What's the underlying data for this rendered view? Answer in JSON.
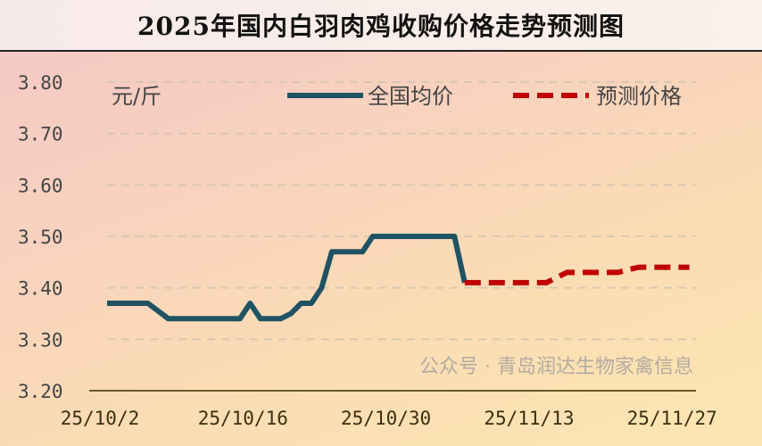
{
  "title": "2025年国内白羽肉鸡收购价格走势预测图",
  "watermark": "公众号 · 青岛润达生物家禽信息",
  "chart_data": {
    "type": "line",
    "title": "2025年国内白羽肉鸡收购价格走势预测图",
    "ylabel": "元/斤",
    "ylim": [
      3.2,
      3.8
    ],
    "yticks": [
      "3.80",
      "3.70",
      "3.60",
      "3.50",
      "3.40",
      "3.30",
      "3.20"
    ],
    "xticks": [
      "25/10/2",
      "25/10/16",
      "25/10/30",
      "25/11/13",
      "25/11/27"
    ],
    "xtick_dates": [
      "2025-10-02",
      "2025-10-16",
      "2025-10-30",
      "2025-11-13",
      "2025-11-27"
    ],
    "grid": true,
    "legend_position": "top",
    "series": [
      {
        "name": "全国均价",
        "color": "#1f5363",
        "style": "solid",
        "points": [
          [
            "2025-10-02",
            3.37
          ],
          [
            "2025-10-06",
            3.37
          ],
          [
            "2025-10-08",
            3.34
          ],
          [
            "2025-10-15",
            3.34
          ],
          [
            "2025-10-16",
            3.37
          ],
          [
            "2025-10-17",
            3.34
          ],
          [
            "2025-10-19",
            3.34
          ],
          [
            "2025-10-20",
            3.35
          ],
          [
            "2025-10-21",
            3.37
          ],
          [
            "2025-10-22",
            3.37
          ],
          [
            "2025-10-23",
            3.4
          ],
          [
            "2025-10-24",
            3.47
          ],
          [
            "2025-10-27",
            3.47
          ],
          [
            "2025-10-28",
            3.5
          ],
          [
            "2025-11-05",
            3.5
          ],
          [
            "2025-11-06",
            3.41
          ]
        ]
      },
      {
        "name": "预测价格",
        "color": "#c00000",
        "style": "dashed",
        "points": [
          [
            "2025-11-06",
            3.41
          ],
          [
            "2025-11-14",
            3.41
          ],
          [
            "2025-11-16",
            3.43
          ],
          [
            "2025-11-21",
            3.43
          ],
          [
            "2025-11-23",
            3.44
          ],
          [
            "2025-11-28",
            3.44
          ]
        ]
      }
    ]
  }
}
